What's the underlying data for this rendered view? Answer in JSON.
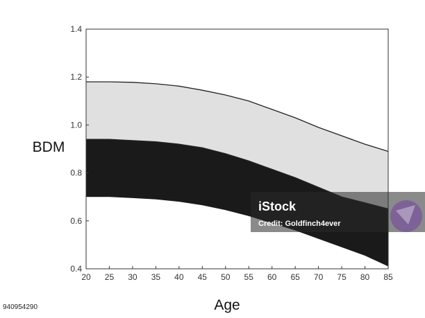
{
  "chart_data": {
    "type": "area",
    "xlabel": "Age",
    "ylabel": "BDM",
    "xlim": [
      20,
      85
    ],
    "ylim": [
      0.4,
      1.4
    ],
    "x_ticks": [
      20,
      25,
      30,
      35,
      40,
      45,
      50,
      55,
      60,
      65,
      70,
      75,
      80,
      85
    ],
    "y_ticks": [
      "0.4",
      "0.6",
      "0.8",
      "1.0",
      "1.2",
      "1.4"
    ],
    "grid": false,
    "bands": [
      {
        "fill": "#e0e0e0",
        "x": [
          20,
          25,
          30,
          35,
          40,
          45,
          50,
          55,
          60,
          65,
          70,
          75,
          80,
          85
        ],
        "lower": [
          0.94,
          0.94,
          0.935,
          0.93,
          0.92,
          0.905,
          0.88,
          0.85,
          0.815,
          0.78,
          0.74,
          0.7,
          0.675,
          0.65
        ],
        "upper": [
          1.18,
          1.18,
          1.178,
          1.172,
          1.162,
          1.145,
          1.125,
          1.1,
          1.065,
          1.03,
          0.99,
          0.955,
          0.92,
          0.89
        ]
      },
      {
        "fill": "#1a1a1a",
        "x": [
          20,
          25,
          30,
          35,
          40,
          45,
          50,
          55,
          60,
          65,
          70,
          75,
          80,
          85
        ],
        "lower": [
          0.7,
          0.7,
          0.695,
          0.69,
          0.68,
          0.665,
          0.645,
          0.62,
          0.59,
          0.56,
          0.525,
          0.49,
          0.455,
          0.41
        ],
        "upper": [
          0.94,
          0.94,
          0.935,
          0.93,
          0.92,
          0.905,
          0.88,
          0.85,
          0.815,
          0.78,
          0.74,
          0.7,
          0.675,
          0.65
        ]
      }
    ]
  },
  "watermark": {
    "brand": "iStock",
    "credit": "Credit: Goldfinch4ever"
  },
  "stock_id": "940954290"
}
